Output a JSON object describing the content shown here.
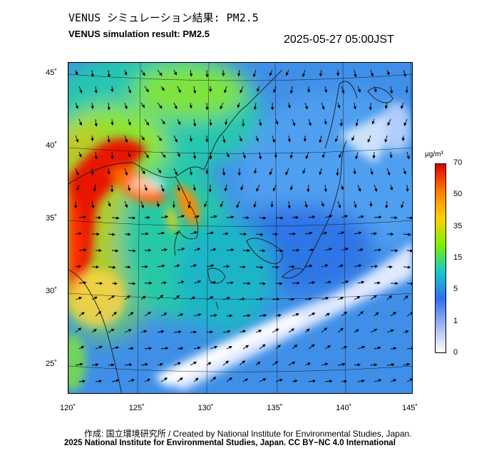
{
  "header": {
    "title_jp": "VENUS シミュレーション結果: PM2.5",
    "title_en": "VENUS simulation result: PM2.5",
    "timestamp": "2025-05-27 05:00JST"
  },
  "map": {
    "lat_labels": [
      "45˚",
      "40˚",
      "35˚",
      "30˚",
      "25˚"
    ],
    "lon_labels": [
      "120˚",
      "125˚",
      "130˚",
      "135˚",
      "140˚",
      "145˚"
    ],
    "lat_values": [
      45,
      40,
      35,
      30,
      25
    ],
    "lon_values": [
      120,
      125,
      130,
      135,
      140,
      145
    ]
  },
  "colorbar": {
    "unit": "μg/m³",
    "ticks": [
      "70",
      "50",
      "35",
      "15",
      "5",
      "1",
      "0"
    ],
    "colors": [
      "#dd0000",
      "#ff7a00",
      "#ffd000",
      "#7ef000",
      "#17c8c8",
      "#2f6ff0",
      "#9fb6f5",
      "#ffffff"
    ]
  },
  "footer": {
    "credit_jp": "作成: 国立環境研究所 / Created by National Institute for Environmental Studies, Japan.",
    "credit_en": "2025 National Institute for Environmental Studies, Japan. CC BY−NC 4.0 International"
  }
}
